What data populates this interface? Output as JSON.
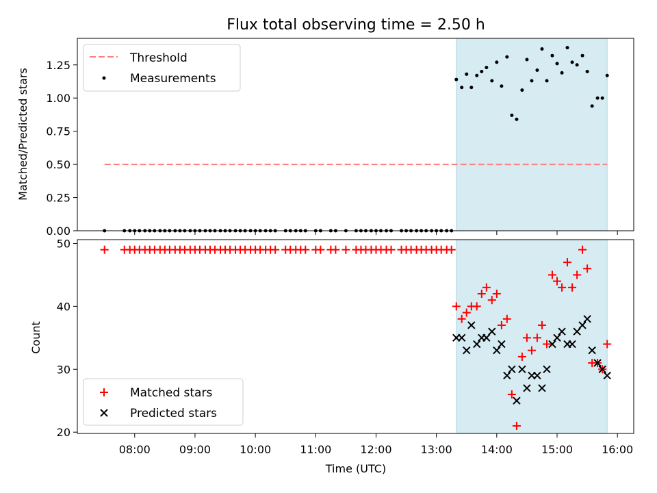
{
  "title": "Flux total observing time = 2.50 h",
  "chart_data": [
    {
      "type": "scatter",
      "ylabel": "Matched/Predicted stars",
      "ylim": [
        0,
        1.45
      ],
      "yticks": [
        "0.00",
        "0.25",
        "0.50",
        "0.75",
        "1.00",
        "1.25"
      ],
      "xlim_hours": [
        7.05,
        16.27
      ],
      "shaded_range_hours": [
        13.33,
        15.83
      ],
      "legend_position": "upper-left",
      "threshold": {
        "name": "Threshold",
        "value": 0.5,
        "x_range_hours": [
          7.5,
          15.83
        ],
        "color": "#ff7f7f"
      },
      "measurements": {
        "name": "Measurements",
        "color": "#000000",
        "x_hours": [
          7.5,
          7.83,
          7.92,
          8.0,
          8.08,
          8.17,
          8.25,
          8.33,
          8.42,
          8.5,
          8.58,
          8.67,
          8.75,
          8.83,
          8.92,
          9.0,
          9.08,
          9.17,
          9.25,
          9.33,
          9.42,
          9.5,
          9.58,
          9.67,
          9.75,
          9.83,
          9.92,
          10.0,
          10.08,
          10.17,
          10.25,
          10.33,
          10.5,
          10.58,
          10.67,
          10.75,
          10.83,
          11.0,
          11.08,
          11.25,
          11.33,
          11.5,
          11.67,
          11.75,
          11.83,
          11.92,
          12.0,
          12.08,
          12.17,
          12.25,
          12.42,
          12.5,
          12.58,
          12.67,
          12.75,
          12.83,
          12.92,
          13.0,
          13.08,
          13.17,
          13.25,
          13.33,
          13.42,
          13.5,
          13.58,
          13.67,
          13.75,
          13.83,
          13.92,
          14.0,
          14.08,
          14.17,
          14.25,
          14.33,
          14.42,
          14.5,
          14.58,
          14.67,
          14.75,
          14.83,
          14.92,
          15.0,
          15.08,
          15.17,
          15.25,
          15.33,
          15.42,
          15.5,
          15.58,
          15.67,
          15.75,
          15.83
        ],
        "y": [
          0,
          0,
          0,
          0,
          0,
          0,
          0,
          0,
          0,
          0,
          0,
          0,
          0,
          0,
          0,
          0,
          0,
          0,
          0,
          0,
          0,
          0,
          0,
          0,
          0,
          0,
          0,
          0,
          0,
          0,
          0,
          0,
          0,
          0,
          0,
          0,
          0,
          0,
          0,
          0,
          0,
          0,
          0,
          0,
          0,
          0,
          0,
          0,
          0,
          0,
          0,
          0,
          0,
          0,
          0,
          0,
          0,
          0,
          0,
          0,
          0,
          1.14,
          1.08,
          1.18,
          1.08,
          1.17,
          1.2,
          1.23,
          1.13,
          1.27,
          1.09,
          1.31,
          0.87,
          0.84,
          1.06,
          1.29,
          1.13,
          1.21,
          1.37,
          1.13,
          1.32,
          1.26,
          1.19,
          1.38,
          1.27,
          1.25,
          1.32,
          1.2,
          0.94,
          1.0,
          1.0,
          1.17
        ]
      }
    },
    {
      "type": "scatter",
      "ylabel": "Count",
      "xlabel": "Time (UTC)",
      "ylim": [
        19.8,
        50.6
      ],
      "yticks": [
        "20",
        "30",
        "40",
        "50"
      ],
      "xticks": [
        "08:00",
        "09:00",
        "10:00",
        "11:00",
        "12:00",
        "13:00",
        "14:00",
        "15:00",
        "16:00"
      ],
      "xtick_hours": [
        8,
        9,
        10,
        11,
        12,
        13,
        14,
        15,
        16
      ],
      "legend_position": "lower-left",
      "series": [
        {
          "name": "Matched stars",
          "marker": "plus",
          "color": "#ff0000",
          "x_hours": [
            7.5,
            7.83,
            7.92,
            8.0,
            8.08,
            8.17,
            8.25,
            8.33,
            8.42,
            8.5,
            8.58,
            8.67,
            8.75,
            8.83,
            8.92,
            9.0,
            9.08,
            9.17,
            9.25,
            9.33,
            9.42,
            9.5,
            9.58,
            9.67,
            9.75,
            9.83,
            9.92,
            10.0,
            10.08,
            10.17,
            10.25,
            10.33,
            10.5,
            10.58,
            10.67,
            10.75,
            10.83,
            11.0,
            11.08,
            11.25,
            11.33,
            11.5,
            11.67,
            11.75,
            11.83,
            11.92,
            12.0,
            12.08,
            12.17,
            12.25,
            12.42,
            12.5,
            12.58,
            12.67,
            12.75,
            12.83,
            12.92,
            13.0,
            13.08,
            13.17,
            13.25,
            13.33,
            13.42,
            13.5,
            13.58,
            13.67,
            13.75,
            13.83,
            13.92,
            14.0,
            14.08,
            14.17,
            14.25,
            14.33,
            14.42,
            14.5,
            14.58,
            14.67,
            14.75,
            14.83,
            14.92,
            15.0,
            15.08,
            15.17,
            15.25,
            15.33,
            15.42,
            15.5,
            15.58,
            15.67,
            15.75,
            15.83
          ],
          "y": [
            49,
            49,
            49,
            49,
            49,
            49,
            49,
            49,
            49,
            49,
            49,
            49,
            49,
            49,
            49,
            49,
            49,
            49,
            49,
            49,
            49,
            49,
            49,
            49,
            49,
            49,
            49,
            49,
            49,
            49,
            49,
            49,
            49,
            49,
            49,
            49,
            49,
            49,
            49,
            49,
            49,
            49,
            49,
            49,
            49,
            49,
            49,
            49,
            49,
            49,
            49,
            49,
            49,
            49,
            49,
            49,
            49,
            49,
            49,
            49,
            49,
            40,
            38,
            39,
            40,
            40,
            42,
            43,
            41,
            42,
            37,
            38,
            26,
            21,
            32,
            35,
            33,
            35,
            37,
            34,
            45,
            44,
            43,
            47,
            43,
            45,
            49,
            46,
            31,
            31,
            30,
            34
          ]
        },
        {
          "name": "Predicted stars",
          "marker": "x",
          "color": "#000000",
          "x_hours": [
            13.33,
            13.42,
            13.5,
            13.58,
            13.67,
            13.75,
            13.83,
            13.92,
            14.0,
            14.08,
            14.17,
            14.25,
            14.33,
            14.42,
            14.5,
            14.58,
            14.67,
            14.75,
            14.83,
            14.92,
            15.0,
            15.08,
            15.17,
            15.25,
            15.33,
            15.42,
            15.5,
            15.58,
            15.67,
            15.75,
            15.83
          ],
          "y": [
            35,
            35,
            33,
            37,
            34,
            35,
            35,
            36,
            33,
            34,
            29,
            30,
            25,
            30,
            27,
            29,
            29,
            27,
            30,
            34,
            35,
            36,
            34,
            34,
            36,
            37,
            38,
            33,
            31,
            30,
            29
          ]
        }
      ]
    }
  ]
}
